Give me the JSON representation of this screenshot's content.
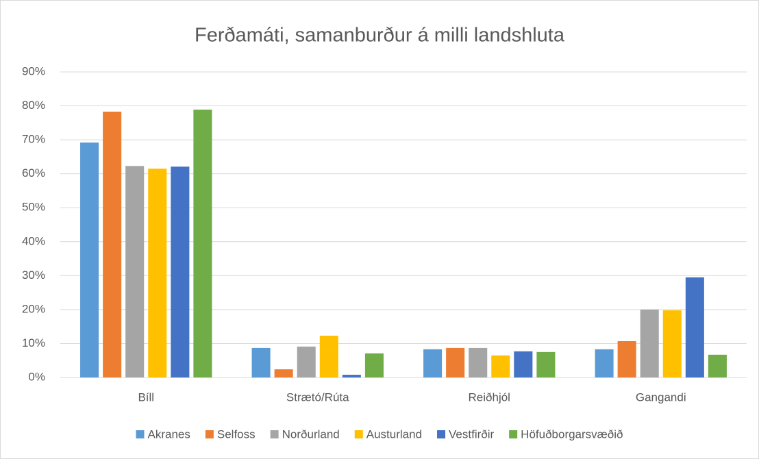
{
  "chart_data": {
    "type": "bar",
    "title": "Ferðamáti, samanburður á milli landshluta",
    "categories": [
      "Bíll",
      "Strætó/Rúta",
      "Reiðhjól",
      "Gangandi"
    ],
    "series": [
      {
        "name": "Akranes",
        "color": "#5b9bd5",
        "values": [
          69.2,
          8.7,
          8.3,
          8.3
        ]
      },
      {
        "name": "Selfoss",
        "color": "#ed7d31",
        "values": [
          78.3,
          2.4,
          8.7,
          10.7
        ]
      },
      {
        "name": "Norðurland",
        "color": "#a5a5a5",
        "values": [
          62.3,
          9.1,
          8.7,
          20
        ]
      },
      {
        "name": "Austurland",
        "color": "#ffc000",
        "values": [
          61.5,
          12.3,
          6.5,
          19.8
        ]
      },
      {
        "name": "Vestfirðir",
        "color": "#4472c4",
        "values": [
          62.1,
          0.8,
          7.7,
          29.5
        ]
      },
      {
        "name": "Höfuðborgarsvæðið",
        "color": "#70ad47",
        "values": [
          78.9,
          7.1,
          7.5,
          6.7
        ]
      }
    ],
    "ylim": [
      0,
      90
    ],
    "yticks": [
      {
        "value": 0,
        "label": "0%"
      },
      {
        "value": 10,
        "label": "10%"
      },
      {
        "value": 20,
        "label": "20%"
      },
      {
        "value": 30,
        "label": "30%"
      },
      {
        "value": 40,
        "label": "40%"
      },
      {
        "value": 50,
        "label": "50%"
      },
      {
        "value": 60,
        "label": "60%"
      },
      {
        "value": 70,
        "label": "70%"
      },
      {
        "value": 80,
        "label": "80%"
      },
      {
        "value": 90,
        "label": "90%"
      }
    ],
    "grid": true,
    "legend": "bottom"
  }
}
